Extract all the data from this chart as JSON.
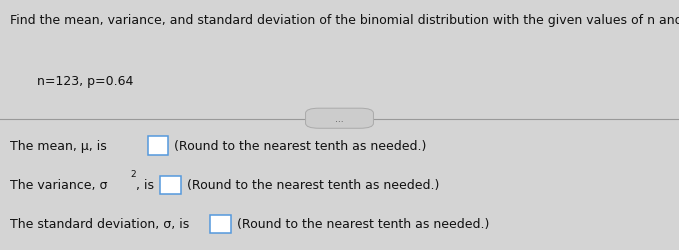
{
  "title_line": "Find the mean, variance, and standard deviation of the binomial distribution with the given values of n and p.",
  "given_values": "n=123, p=0.64",
  "line1_pre": "The mean, μ, is",
  "line1_post": " (Round to the nearest tenth as needed.)",
  "line2_pre": "The variance, σ",
  "line2_sup": "2",
  "line2_mid": ", is",
  "line2_post": " (Round to the nearest tenth as needed.)",
  "line3_pre": "The standard deviation, σ, is",
  "line3_post": " (Round to the nearest tenth as needed.)",
  "dots_text": "...",
  "top_bg": "#c8c8c8",
  "bottom_bg": "#d4d4d4",
  "text_color": "#111111",
  "box_fill": "#ffffff",
  "box_edge": "#5599dd",
  "divider_color": "#999999",
  "dots_box_fill": "#cccccc",
  "dots_box_edge": "#aaaaaa",
  "title_fontsize": 9.0,
  "body_fontsize": 9.0,
  "given_fontsize": 9.0
}
